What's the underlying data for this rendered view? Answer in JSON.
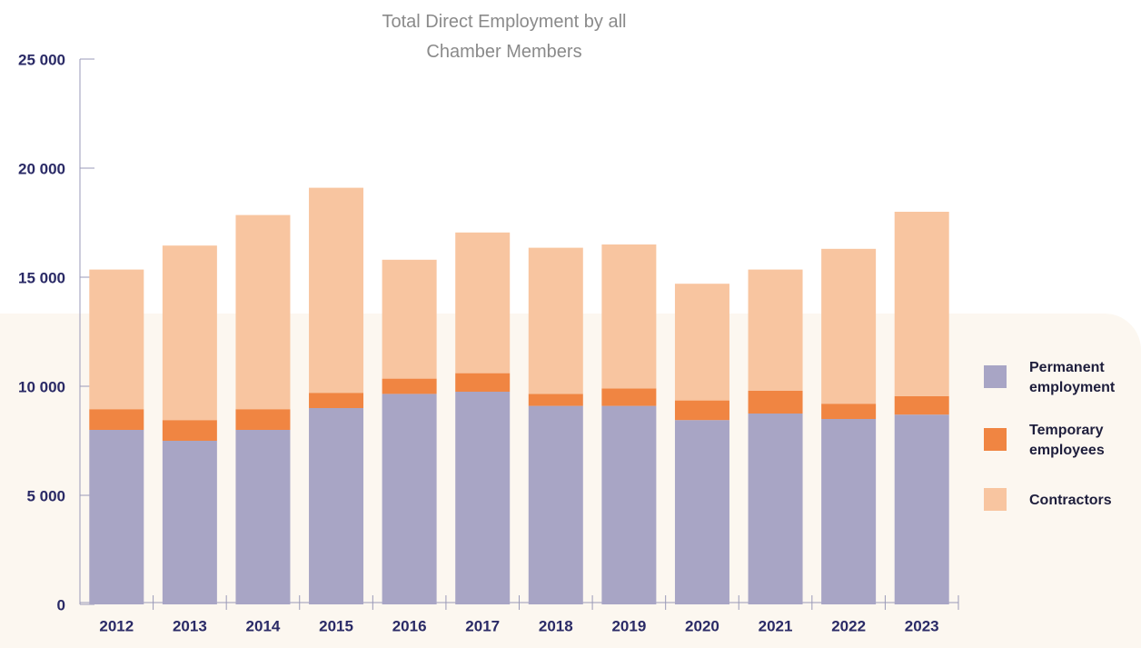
{
  "chart_data": {
    "type": "stacked-bar",
    "title": "Total Direct Employment by all Chamber Members",
    "categories": [
      "2012",
      "2013",
      "2014",
      "2015",
      "2016",
      "2017",
      "2018",
      "2019",
      "2020",
      "2021",
      "2022",
      "2023"
    ],
    "series": [
      {
        "name": "Permanent employment",
        "color": "#a8a5c5",
        "values": [
          8000,
          7500,
          8000,
          9000,
          9650,
          9750,
          9100,
          9100,
          8450,
          8750,
          8500,
          8700
        ]
      },
      {
        "name": "Temporary employees",
        "color": "#f08542",
        "values": [
          950,
          950,
          950,
          700,
          700,
          850,
          550,
          800,
          900,
          1050,
          700,
          850
        ]
      },
      {
        "name": "Contractors",
        "color": "#f8c5a0",
        "values": [
          6400,
          8000,
          8900,
          9400,
          5450,
          6450,
          6700,
          6600,
          5350,
          5550,
          7100,
          8450
        ]
      }
    ],
    "ylim": [
      0,
      25000
    ],
    "yticks": [
      0,
      {
        "value": 5000,
        "label": "5 000"
      },
      {
        "value": 10000,
        "label": "10 000"
      },
      {
        "value": 15000,
        "label": "15 000"
      },
      {
        "value": 20000,
        "label": "20 000"
      },
      {
        "value": 25000,
        "label": "25 000"
      }
    ],
    "legend": "right"
  }
}
